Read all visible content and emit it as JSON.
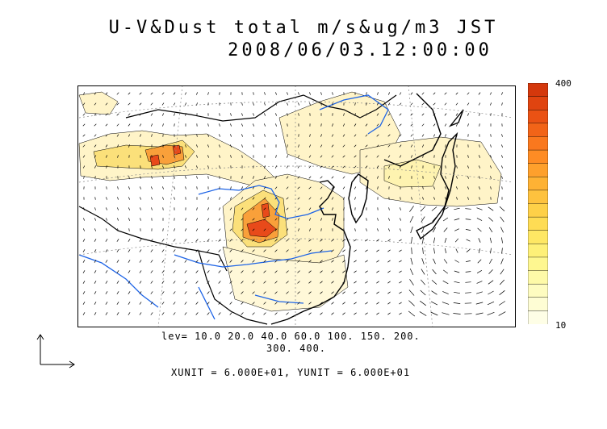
{
  "title": {
    "line1": "U-V&Dust total m/s&ug/m3 JST",
    "line2": "2008/06/03.12:00:00"
  },
  "levels": {
    "line1": "lev= 10.0 20.0 40.0 60.0 100. 150. 200.",
    "line2": "300. 400.",
    "values": [
      10,
      20,
      40,
      60,
      100,
      150,
      200,
      300,
      400
    ]
  },
  "units": {
    "text": "XUNIT = 6.000E+01, YUNIT = 6.000E+01"
  },
  "colorbar": {
    "max_label": "400",
    "min_label": "10",
    "colors": [
      "#fefee6",
      "#fefdd4",
      "#fefcc0",
      "#fefaa8",
      "#fef790",
      "#fef078",
      "#fee764",
      "#fedc54",
      "#fed048",
      "#fec23e",
      "#feb234",
      "#fea02c",
      "#fe8c24",
      "#fa781e",
      "#f26418",
      "#ea5214",
      "#e04410",
      "#d4380c"
    ]
  },
  "map": {
    "colors": {
      "land_outline": "#000000",
      "river": "#1e64e6",
      "grid": "#888888",
      "dust_low": "#fff4c8",
      "dust_mid": "#fbe07a",
      "dust_high": "#f9a03a",
      "dust_max": "#e84a1a"
    }
  }
}
